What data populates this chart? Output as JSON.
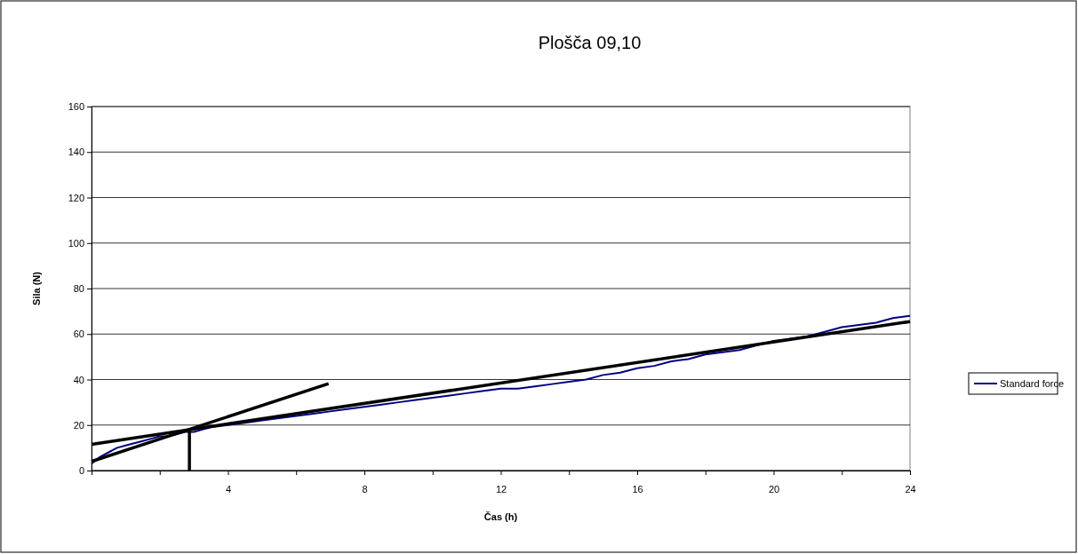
{
  "chart_data": {
    "type": "line",
    "title": "Plošča 09,10",
    "xlabel": "Čas (h)",
    "ylabel": "Sila (N)",
    "xlim": [
      0,
      24
    ],
    "ylim": [
      0,
      160
    ],
    "xticks": [
      {
        "value": 0,
        "label": null
      },
      {
        "value": 2,
        "label": null
      },
      4,
      {
        "value": 6,
        "label": null
      },
      8,
      {
        "value": 10,
        "label": null
      },
      12,
      {
        "value": 14,
        "label": null
      },
      16,
      {
        "value": 18,
        "label": null
      },
      20,
      {
        "value": 22,
        "label": null
      },
      24
    ],
    "yticks": [
      0,
      20,
      40,
      60,
      80,
      100,
      120,
      140,
      160
    ],
    "grid": "y",
    "legend": "right",
    "line_style": "solid",
    "series": [
      {
        "name": "Standard force",
        "color": "#000080",
        "x": [
          0,
          0.25,
          0.5,
          0.75,
          1,
          1.25,
          1.5,
          1.75,
          2,
          2.25,
          2.5,
          2.75,
          3,
          3.25,
          3.5,
          4,
          4.5,
          5,
          5.5,
          6,
          6.5,
          7,
          7.5,
          8,
          8.5,
          9,
          9.5,
          10,
          10.5,
          11,
          11.5,
          12,
          12.5,
          13,
          13.5,
          14,
          14.5,
          15,
          15.5,
          16,
          16.5,
          17,
          17.5,
          18,
          18.5,
          19,
          19.5,
          20,
          20.5,
          21,
          21.5,
          22,
          22.5,
          23,
          23.5,
          24
        ],
        "values": [
          3,
          6,
          8,
          10,
          11,
          12,
          13,
          14,
          15,
          15,
          16,
          17,
          17,
          18,
          19,
          20,
          21,
          22,
          23,
          24,
          25,
          26,
          27,
          28,
          29,
          30,
          31,
          32,
          33,
          34,
          35,
          36,
          36,
          37,
          38,
          39,
          40,
          42,
          43,
          45,
          46,
          48,
          49,
          51,
          52,
          53,
          55,
          57,
          58,
          59,
          61,
          63,
          64,
          65,
          67,
          68
        ]
      },
      {
        "type": "line",
        "color": "#000000",
        "x": [
          0,
          24
        ],
        "values": [
          11.5,
          65.5
        ]
      },
      {
        "type": "line",
        "color": "#000000",
        "x": [
          0,
          6.95
        ],
        "values": [
          4,
          38.2
        ]
      },
      {
        "type": "line",
        "color": "#000000",
        "x": [
          2.87,
          2.87
        ],
        "values": [
          0,
          18
        ]
      }
    ]
  }
}
